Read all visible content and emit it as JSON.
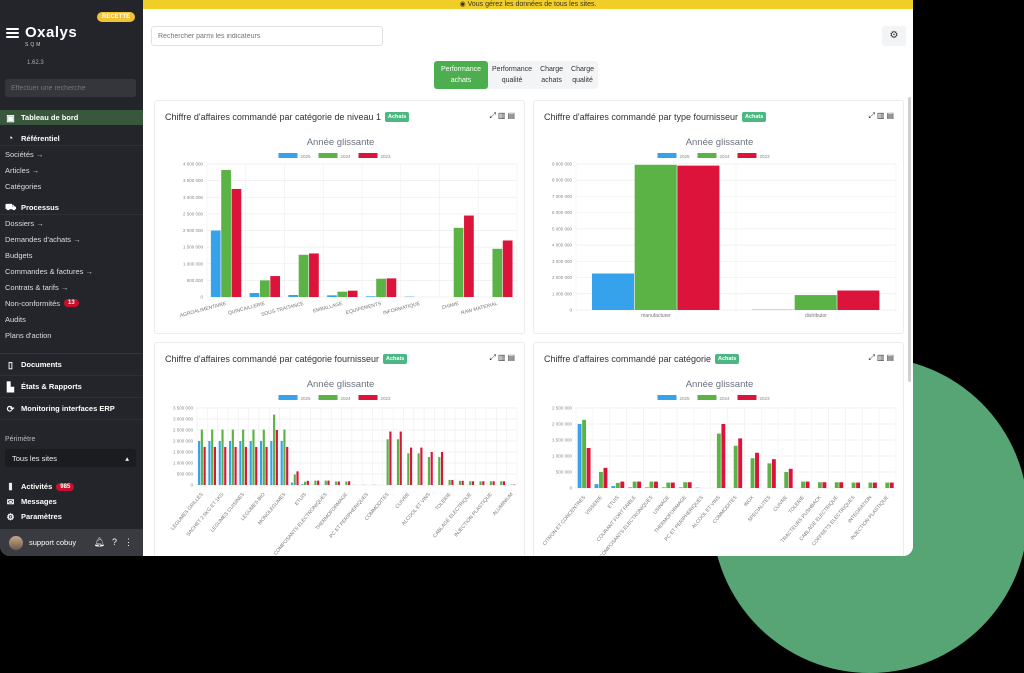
{
  "sidebar": {
    "logo": "Oxalys",
    "logo_sub": "SQM",
    "env_badge": "RECETTE",
    "version": "1.62.3",
    "search_placeholder": "Effectuer une recherche",
    "dashboard": "Tableau de bord",
    "referentiel": {
      "title": "Référentiel",
      "items": [
        "Sociétés →",
        "Articles →",
        "Catégories"
      ]
    },
    "processus": {
      "title": "Processus",
      "items": [
        "Dossiers →",
        "Demandes d'achats →",
        "Budgets",
        "Commandes & factures →",
        "Contrats & tarifs →",
        "Non-conformités",
        "Audits",
        "Plans d'action"
      ],
      "nonconformites_count": "13"
    },
    "sections": [
      "Documents",
      "États & Rapports",
      "Monitoring interfaces ERP"
    ],
    "perimetre_label": "Périmètre",
    "perimetre_value": "Tous les sites",
    "activites": "Activités",
    "activites_count": "985",
    "messages": "Messages",
    "parametres": "Paramètres",
    "user_name": "support cobuy"
  },
  "banner": {
    "text": "◉ Vous gérez les données de tous les sites."
  },
  "toolbar": {
    "search_placeholder": "Rechercher parmi les indicateurs"
  },
  "tabs": [
    {
      "line1": "Performance",
      "line2": "achats",
      "active": true
    },
    {
      "line1": "Performance",
      "line2": "qualité",
      "active": false
    },
    {
      "line1": "Charge",
      "line2": "achats",
      "active": false
    },
    {
      "line1": "Charge",
      "line2": "qualité",
      "active": false
    }
  ],
  "badge_label": "Achats",
  "colors": {
    "2025": "#36a2eb",
    "2024": "#5bb346",
    "2023": "#dc143c",
    "accent": "#4cae4f",
    "badge": "#4bb783",
    "banner": "#f0cd27"
  },
  "chart_data": [
    {
      "type": "bar",
      "title": "Chiffre d'affaires commandé par catégorie de niveau 1",
      "subtitle": "Année glissante",
      "legend": [
        "2025",
        "2024",
        "2023"
      ],
      "categories": [
        "AGROALIMENTAIRE",
        "QUINCAILLERIE",
        "SOUS-TRAITANCE",
        "EMBALLAGE",
        "EQUIPEMENTS",
        "INFORMATIQUE",
        "CHIMIE",
        "RAW MATERIAL"
      ],
      "series": [
        {
          "name": "2025",
          "values": [
            2000000,
            120000,
            60000,
            50000,
            20000,
            10000,
            0,
            0
          ]
        },
        {
          "name": "2024",
          "values": [
            3820000,
            500000,
            1270000,
            160000,
            550000,
            0,
            2080000,
            1450000
          ]
        },
        {
          "name": "2023",
          "values": [
            3250000,
            630000,
            1310000,
            190000,
            560000,
            0,
            2450000,
            1700000
          ]
        }
      ],
      "ylim": [
        0,
        4000000
      ],
      "yticks": [
        "4 000 000",
        "3 500 000",
        "3 000 000",
        "2 500 000",
        "2 000 000",
        "1 500 000",
        "1 000 000",
        "500 000",
        "0"
      ],
      "xlabel": "",
      "ylabel": ""
    },
    {
      "type": "bar",
      "title": "Chiffre d'affaires commandé par type fournisseur",
      "subtitle": "Année glissante",
      "legend": [
        "2025",
        "2024",
        "2023"
      ],
      "categories": [
        "manufacturer",
        "distributor"
      ],
      "series": [
        {
          "name": "2025",
          "values": [
            2250000,
            20000
          ]
        },
        {
          "name": "2024",
          "values": [
            8950000,
            920000
          ]
        },
        {
          "name": "2023",
          "values": [
            8900000,
            1200000
          ]
        }
      ],
      "ylim": [
        0,
        9000000
      ],
      "yticks": [
        "9 000 000",
        "8 000 000",
        "7 000 000",
        "6 000 000",
        "5 000 000",
        "4 000 000",
        "3 000 000",
        "2 000 000",
        "1 000 000",
        "0"
      ],
      "xlabel": "",
      "ylabel": ""
    },
    {
      "type": "bar",
      "title": "Chiffre d'affaires commandé par catégorie fournisseur",
      "subtitle": "Année glissante",
      "legend": [
        "2025",
        "2024",
        "2023"
      ],
      "categories": [
        "LEGUMES GRILLES",
        "",
        "SACHET 2.5KG ET 1KG",
        "",
        "LEGUMES CUISINES",
        "",
        "LEGUMES BIO",
        "",
        "MONOLEGUMES",
        "",
        "ETUIS",
        "",
        "COMPOSANTS ELECTRONIQUES",
        "",
        "THERMOFORMAGE",
        "",
        "PC ET PERIPHERIQUES",
        "",
        "COMMODITES",
        "",
        "CUIVRE",
        "",
        "ALCOOL ET VINS",
        "",
        "TOLERIE",
        "",
        "CABLAGE ELECTRIQUE",
        "",
        "INJECTION PLASTIQUE",
        "",
        "ALUMINIUM"
      ],
      "series": [
        {
          "name": "2025",
          "values": [
            2000000,
            2000000,
            2000000,
            2000000,
            2000000,
            2000000,
            2000000,
            2000000,
            2000000,
            110000,
            40000,
            10000,
            0,
            0,
            0,
            10000,
            10000,
            10000,
            0,
            0,
            0,
            0,
            0,
            0,
            0,
            0,
            0,
            0,
            0,
            0,
            0
          ]
        },
        {
          "name": "2024",
          "values": [
            2520000,
            2520000,
            2520000,
            2520000,
            2520000,
            2520000,
            2520000,
            3200000,
            2520000,
            480000,
            150000,
            200000,
            200000,
            160000,
            160000,
            0,
            0,
            0,
            2080000,
            2080000,
            1440000,
            1440000,
            1270000,
            1270000,
            230000,
            190000,
            170000,
            170000,
            170000,
            170000,
            20000
          ]
        },
        {
          "name": "2023",
          "values": [
            1730000,
            1730000,
            1730000,
            1730000,
            1730000,
            1730000,
            1730000,
            2500000,
            1730000,
            620000,
            190000,
            200000,
            200000,
            160000,
            170000,
            0,
            0,
            0,
            2430000,
            2430000,
            1700000,
            1700000,
            1500000,
            1500000,
            230000,
            190000,
            170000,
            170000,
            170000,
            170000,
            20000
          ]
        }
      ],
      "ylim": [
        0,
        3500000
      ],
      "yticks": [
        "3 500 000",
        "3 000 000",
        "2 500 000",
        "2 000 000",
        "1 500 000",
        "1 000 000",
        "500 000",
        "0"
      ],
      "xlabel": "",
      "ylabel": ""
    },
    {
      "type": "bar",
      "title": "Chiffre d'affaires commandé par catégorie",
      "subtitle": "Année glissante",
      "legend": [
        "2025",
        "2024",
        "2023"
      ],
      "categories": [
        "CITRON ET CONCENTRES",
        "VISSERIE",
        "ETUIS",
        "COURANT FORT FAIBLE",
        "COMPOSANTS ELECTRONIQUES",
        "USINAGE",
        "THERMOFORMAGE",
        "PC ET PERIPHERIQUES",
        "ALCOOL ET VINS",
        "COMMODITES",
        "INOX",
        "SPECIALITES",
        "CUIVRE",
        "TOLERIE",
        "TRACTEURS PUSHBACK",
        "CABLAGE ELECTRIQUE",
        "COFFRETS ELECTRIQUES",
        "INTEGRATION",
        "INJECTION PLASTIQUE"
      ],
      "series": [
        {
          "name": "2025",
          "values": [
            2000000,
            120000,
            60000,
            20000,
            20000,
            20000,
            20000,
            10000,
            0,
            0,
            0,
            0,
            0,
            0,
            0,
            0,
            0,
            0,
            0
          ]
        },
        {
          "name": "2024",
          "values": [
            2130000,
            500000,
            160000,
            200000,
            200000,
            170000,
            180000,
            0,
            1700000,
            1320000,
            930000,
            770000,
            500000,
            200000,
            180000,
            180000,
            170000,
            170000,
            170000
          ]
        },
        {
          "name": "2023",
          "values": [
            1250000,
            630000,
            200000,
            200000,
            200000,
            170000,
            180000,
            0,
            2000000,
            1550000,
            1100000,
            900000,
            600000,
            200000,
            180000,
            180000,
            170000,
            170000,
            170000
          ]
        }
      ],
      "ylim": [
        0,
        2500000
      ],
      "yticks": [
        "2 500 000",
        "2 000 000",
        "1 500 000",
        "1 000 000",
        "500 000",
        "0"
      ],
      "xlabel": "",
      "ylabel": ""
    }
  ]
}
